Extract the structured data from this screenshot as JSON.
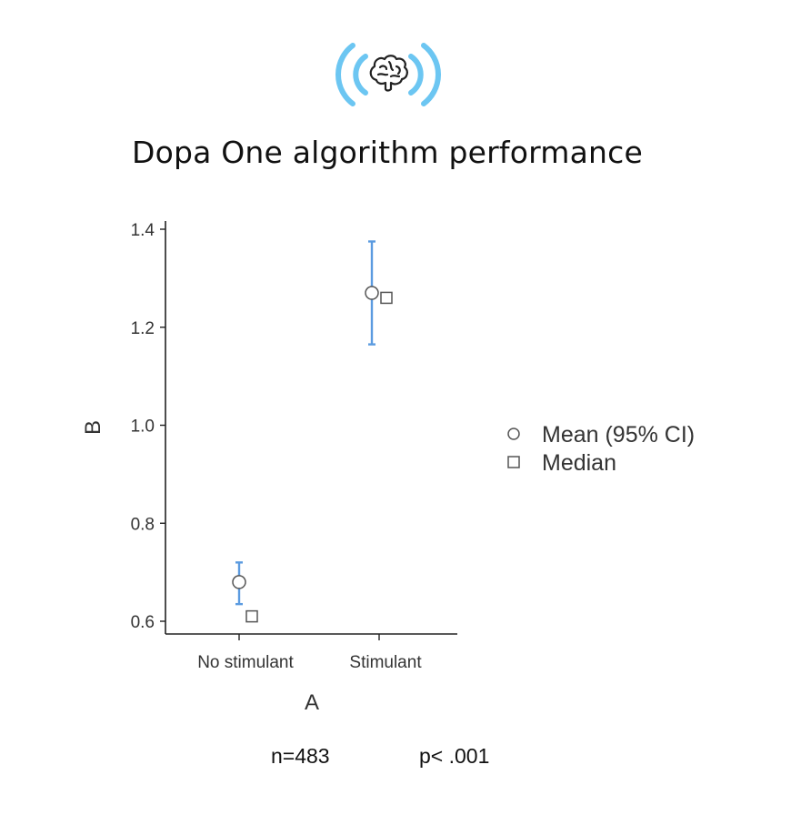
{
  "title": "Dopa One algorithm performance",
  "footer": {
    "n_text": "n=483",
    "p_text": "p< .001"
  },
  "logo": {
    "icon": "brain-signal-icon",
    "color": "#6cc6f2"
  },
  "chart_data": {
    "type": "scatter",
    "title": "Dopa One algorithm performance",
    "xlabel": "A",
    "ylabel": "B",
    "categories": [
      "No stimulant",
      "Stimulant"
    ],
    "ylim": [
      0.58,
      1.42
    ],
    "yticks": [
      0.6,
      0.8,
      1.0,
      1.2,
      1.4
    ],
    "ytick_labels": [
      "0.6",
      "0.8",
      "1.0",
      "1.2",
      "1.4"
    ],
    "grid": false,
    "legend_position": "right",
    "series": [
      {
        "name": "Mean (95% CI)",
        "marker": "circle",
        "values": [
          0.68,
          1.27
        ],
        "ci_low": [
          0.635,
          1.165
        ],
        "ci_high": [
          0.72,
          1.375
        ],
        "error_color": "#5b9be0"
      },
      {
        "name": "Median",
        "marker": "square",
        "values": [
          0.61,
          1.26
        ]
      }
    ]
  }
}
